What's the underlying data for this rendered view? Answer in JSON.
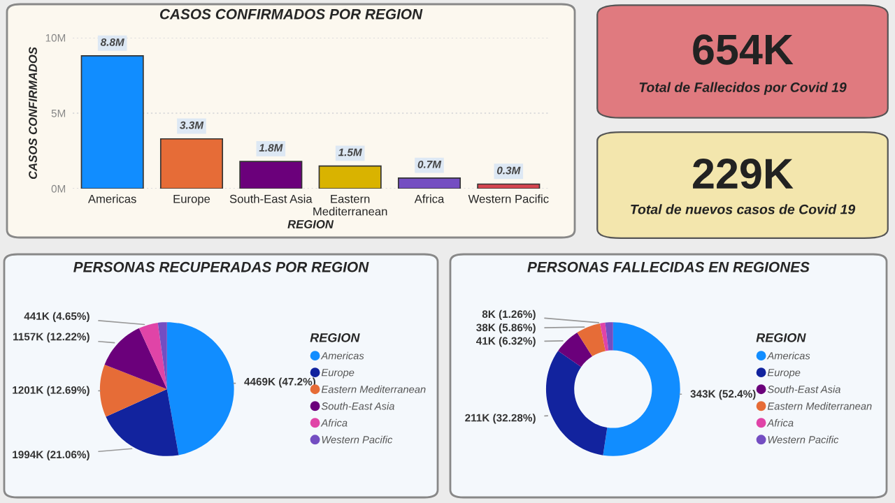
{
  "chart_data": [
    {
      "type": "bar",
      "title": "CASOS CONFIRMADOS POR REGION",
      "xlabel": "REGION",
      "ylabel": "CASOS CONFIRMADOS",
      "categories": [
        "Americas",
        "Europe",
        "South-East Asia",
        "Eastern Mediterranean",
        "Africa",
        "Western Pacific"
      ],
      "values": [
        8800000,
        3300000,
        1800000,
        1500000,
        700000,
        300000
      ],
      "value_labels": [
        "8.8M",
        "3.3M",
        "1.8M",
        "1.5M",
        "0.7M",
        "0.3M"
      ],
      "colors": [
        "#118dff",
        "#e66c37",
        "#6b007b",
        "#d9b300",
        "#744ec2",
        "#d64550"
      ],
      "ylim": [
        0,
        10000000
      ],
      "yticks": [
        {
          "value": 0,
          "label": "0M"
        },
        {
          "value": 5000000,
          "label": "5M"
        },
        {
          "value": 10000000,
          "label": "10M"
        }
      ],
      "grid": "y",
      "legend": false
    },
    {
      "type": "other",
      "color": "#e07a7f",
      "annotations": [
        "654K",
        "Total de Fallecidos por Covid 19"
      ]
    },
    {
      "type": "other",
      "color": "#f3e6ad",
      "annotations": [
        "229K",
        "Total de nuevos casos de Covid 19"
      ]
    },
    {
      "type": "pie",
      "title": "PERSONAS RECUPERADAS POR REGION",
      "legend_title": "REGION",
      "legend": "right",
      "categories": [
        "Americas",
        "Europe",
        "Eastern Mediterranean",
        "South-East Asia",
        "Africa",
        "Western Pacific"
      ],
      "values": [
        47.2,
        21.06,
        12.69,
        12.22,
        4.65,
        2.18
      ],
      "value_labels": [
        "4469K (47.2%)",
        "1994K (21.06%)",
        "1201K (12.69%)",
        "1157K (12.22%)",
        "441K (4.65%)",
        null
      ],
      "colors": [
        "#118dff",
        "#12239e",
        "#e66c37",
        "#6b007b",
        "#e044a7",
        "#744ec2"
      ]
    },
    {
      "type": "donut",
      "title": "PERSONAS FALLECIDAS EN REGIONES",
      "legend_title": "REGION",
      "legend": "right",
      "categories": [
        "Americas",
        "Europe",
        "South-East Asia",
        "Eastern Mediterranean",
        "Africa",
        "Western Pacific"
      ],
      "values": [
        52.4,
        32.28,
        6.32,
        5.86,
        1.26,
        1.88
      ],
      "value_labels": [
        "343K (52.4%)",
        "211K (32.28%)",
        "41K (6.32%)",
        "38K (5.86%)",
        "8K (1.26%)",
        null
      ],
      "colors": [
        "#118dff",
        "#12239e",
        "#6b007b",
        "#e66c37",
        "#e044a7",
        "#744ec2"
      ]
    }
  ]
}
